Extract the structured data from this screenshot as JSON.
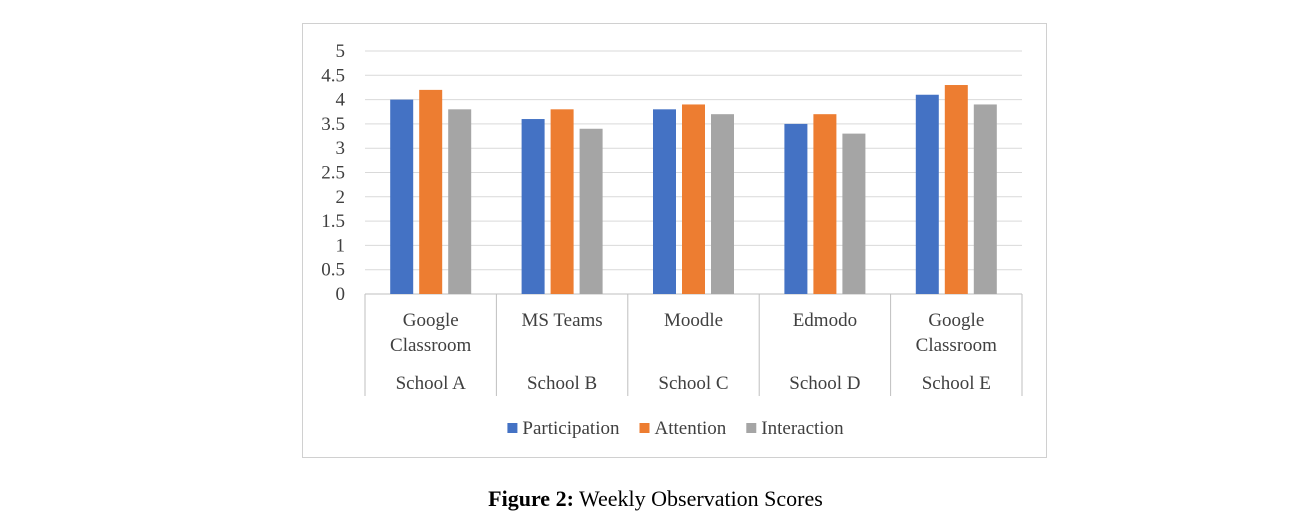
{
  "chart_data": {
    "type": "bar",
    "categories": [
      {
        "primary": [
          "Google",
          "Classroom"
        ],
        "group": "School A"
      },
      {
        "primary": [
          "MS Teams"
        ],
        "group": "School B"
      },
      {
        "primary": [
          "Moodle"
        ],
        "group": "School C"
      },
      {
        "primary": [
          "Edmodo"
        ],
        "group": "School D"
      },
      {
        "primary": [
          "Google",
          "Classroom"
        ],
        "group": "School E"
      }
    ],
    "series": [
      {
        "name": "Participation",
        "color": "#4472c4",
        "values": [
          4.0,
          3.6,
          3.8,
          3.5,
          4.1
        ]
      },
      {
        "name": "Attention",
        "color": "#ed7d31",
        "values": [
          4.2,
          3.8,
          3.9,
          3.7,
          4.3
        ]
      },
      {
        "name": "Interaction",
        "color": "#a5a5a5",
        "values": [
          3.8,
          3.4,
          3.7,
          3.3,
          3.9
        ]
      }
    ],
    "yticks": [
      "0",
      "0.5",
      "1",
      "1.5",
      "2",
      "2.5",
      "3",
      "3.5",
      "4",
      "4.5",
      "5"
    ],
    "ylim": [
      0,
      5
    ],
    "grid": true,
    "legend_position": "bottom"
  },
  "caption": {
    "label": "Figure 2:",
    "text": " Weekly Observation Scores"
  }
}
